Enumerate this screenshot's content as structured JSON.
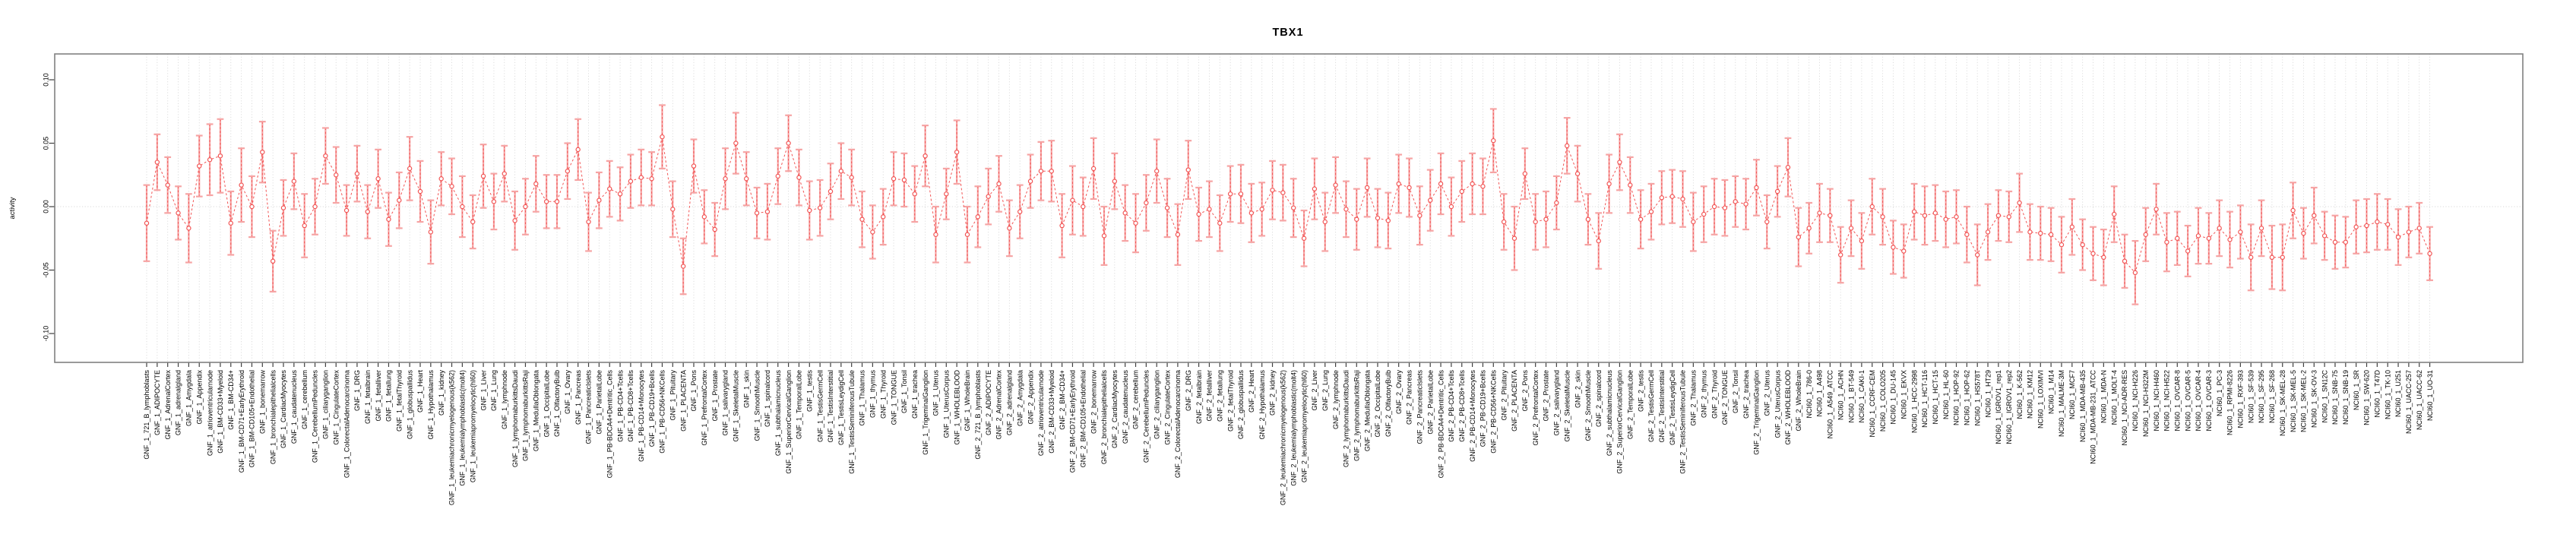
{
  "title": "TBX1",
  "chart_data": {
    "type": "line",
    "subtype": "points-with-error-bars",
    "title": "TBX1",
    "xlabel": "",
    "ylabel": "activity",
    "ylim": [
      -0.123,
      0.122
    ],
    "ytick_values": [
      0.1,
      0.05,
      0.0,
      -0.05,
      -0.1
    ],
    "ytick_labels": [
      "0.10",
      "0.05",
      "0.00",
      "-0.05",
      "-0.10"
    ],
    "grid": "vertical dotted gridline at every category; horizontal dotted line at y=0",
    "legend": "none",
    "colors": {
      "point_and_line": "#f25454",
      "error_bar": "#f6a4a4",
      "grid": "#d9d9d9",
      "box_border": "#808080",
      "tick": "#404040",
      "text": "#000000",
      "background": "#ffffff"
    },
    "categories": [
      "GNF_1_721_B_lymphoblasts",
      "GNF_1_ADIPOCYTE",
      "GNF_1_AdrenalCortex",
      "GNF_1_adrenalgland",
      "GNF_1_Amygdala",
      "GNF_1_Appendix",
      "GNF_1_atrioventricularnode",
      "GNF_1_BM-CD33+Myeloid",
      "GNF_1_BM-CD34+",
      "GNF_1_BM-CD71+EarlyErythroid",
      "GNF_1_BM-CD105+Endothelial",
      "GNF_1_bonemarrow",
      "GNF_1_bronchialepithelialcells",
      "GNF_1_CardiacMyocytes",
      "GNF_1_caudatenucleus",
      "GNF_1_cerebellum",
      "GNF_1_CerebellumPeduncles",
      "GNF_1_ciliaryganglion",
      "GNF_1_CingulateCortex",
      "GNF_1_ColorectalAdenocarcinoma",
      "GNF_1_DRG",
      "GNF_1_fetalbrain",
      "GNF_1_fetalliver",
      "GNF_1_fetallung",
      "GNF_1_fetalThyroid",
      "GNF_1_globuspallidus",
      "GNF_1_Heart",
      "GNF_1_Hypothalamus",
      "GNF_1_kidney",
      "GNF_1_leukemiachronicmyelogenous(k562)",
      "GNF_1_leukemialymphoblastic(molt4)",
      "GNF_1_leukemiapromyelocytic(hl60)",
      "GNF_1_Liver",
      "GNF_1_Lung",
      "GNF_1_lymphnode",
      "GNF_1_lymphomaburkittsDaudi",
      "GNF_1_lymphomaburkittsRaji",
      "GNF_1_MedullaOblongata",
      "GNF_1_OccipitalLobe",
      "GNF_1_OlfactoryBulb",
      "GNF_1_Ovary",
      "GNF_1_Pancreas",
      "GNF_1_PancreaticIslets",
      "GNF_1_ParietalLobe",
      "GNF_1_PB-BDCA4+Dentritic_Cells",
      "GNF_1_PB-CD4+Tcells",
      "GNF_1_PB-CD8+Tcells",
      "GNF_1_PB-CD14+Monocytes",
      "GNF_1_PB-CD19+Bcells",
      "GNF_1_PB-CD56+NKCells",
      "GNF_1_Pituitary",
      "GNF_1_PLACENTA",
      "GNF_1_Pons",
      "GNF_1_PrefrontalCortex",
      "GNF_1_Prostate",
      "GNF_1_salivarygland",
      "GNF_1_SkeletalMuscle",
      "GNF_1_skin",
      "GNF_1_SmoothMuscle",
      "GNF_1_spinalcord",
      "GNF_1_subthalamicnucleus",
      "GNF_1_SuperiorCervicalGanglion",
      "GNF_1_TemporalLobe",
      "GNF_1_testis",
      "GNF_1_TestisGermCell",
      "GNF_1_TestisInterstitial",
      "GNF_1_TestisLeydigCell",
      "GNF_1_TestisSeminiferousTubule",
      "GNF_1_Thalamus",
      "GNF_1_thymus",
      "GNF_1_Thyroid",
      "GNF_1_TONGUE",
      "GNF_1_Tonsil",
      "GNF_1_trachea",
      "GNF_1_TrigeminalGanglion",
      "GNF_1_Uterus",
      "GNF_1_UterusCorpus",
      "GNF_1_WHOLEBLOOD",
      "GNF_1_WholeBrain",
      "GNF_2_721_B_lymphoblasts",
      "GNF_2_ADIPOCYTE",
      "GNF_2_AdrenalCortex",
      "GNF_2_adrenalgland",
      "GNF_2_Amygdala",
      "GNF_2_Appendix",
      "GNF_2_atrioventricularnode",
      "GNF_2_BM-CD33+Myeloid",
      "GNF_2_BM-CD34+",
      "GNF_2_BM-CD71+EarlyErythroid",
      "GNF_2_BM-CD105+Endothelial",
      "GNF_2_bonemarrow",
      "GNF_2_bronchialepithelialcells",
      "GNF_2_CardiacMyocytes",
      "GNF_2_caudatenucleus",
      "GNF_2_cerebellum",
      "GNF_2_CerebellumPeduncles",
      "GNF_2_ciliaryganglion",
      "GNF_2_CingulateCortex",
      "GNF_2_ColorectalAdenocarcinoma",
      "GNF_2_DRG",
      "GNF_2_fetalbrain",
      "GNF_2_fetalliver",
      "GNF_2_fetallung",
      "GNF_2_fetalThyroid",
      "GNF_2_globuspallidus",
      "GNF_2_Heart",
      "GNF_2_Hypothalamus",
      "GNF_2_kidney",
      "GNF_2_leukemiachronicmyelogenous(k562)",
      "GNF_2_leukemialymphoblastic(molt4)",
      "GNF_2_leukemiapromyelocytic(hl60)",
      "GNF_2_Liver",
      "GNF_2_Lung",
      "GNF_2_lymphnode",
      "GNF_2_lymphomaburkittsDaudi",
      "GNF_2_lymphomaburkittsRaji",
      "GNF_2_MedullaOblongata",
      "GNF_2_OccipitalLobe",
      "GNF_2_OlfactoryBulb",
      "GNF_2_Ovary",
      "GNF_2_Pancreas",
      "GNF_2_PancreaticIslets",
      "GNF_2_ParietalLobe",
      "GNF_2_PB-BDCA4+Dentritic_Cells",
      "GNF_2_PB-CD4+Tcells",
      "GNF_2_PB-CD8+Tcells",
      "GNF_2_PB-CD14+Monocytes",
      "GNF_2_PB-CD19+Bcells",
      "GNF_2_PB-CD56+NKCells",
      "GNF_2_Pituitary",
      "GNF_2_PLACENTA",
      "GNF_2_Pons",
      "GNF_2_PrefrontalCortex",
      "GNF_2_Prostate",
      "GNF_2_salivarygland",
      "GNF_2_SkeletalMuscle",
      "GNF_2_skin",
      "GNF_2_SmoothMuscle",
      "GNF_2_spinalcord",
      "GNF_2_subthalamicnucleus",
      "GNF_2_SuperiorCervicalGanglion",
      "GNF_2_TemporalLobe",
      "GNF_2_testis",
      "GNF_2_TestisGermCell",
      "GNF_2_TestisInterstitial",
      "GNF_2_TestisLeydigCell",
      "GNF_2_TestisSeminiferousTubule",
      "GNF_2_Thalamus",
      "GNF_2_thymus",
      "GNF_2_Thyroid",
      "GNF_2_TONGUE",
      "GNF_2_Tonsil",
      "GNF_2_trachea",
      "GNF_2_TrigeminalGanglion",
      "GNF_2_Uterus",
      "GNF_2_UterusCorpus",
      "GNF_2_WHOLEBLOOD",
      "GNF_2_WholeBrain",
      "NCI60_1_786-0",
      "NCI60_1_A498",
      "NCI60_1_A549_ATCC",
      "NCI60_1_ACHN",
      "NCI60_1_BT-549",
      "NCI60_1_CAKI-1",
      "NCI60_1_CCRF-CEM",
      "NCI60_1_COLO205",
      "NCI60_1_DU-145",
      "NCI60_1_EKVX",
      "NCI60_1_HCC-2998",
      "NCI60_1_HCT-116",
      "NCI60_1_HCT-15",
      "NCI60_1_HL-60",
      "NCI60_1_HOP-92",
      "NCI60_1_HOP-62",
      "NCI60_1_HS578T",
      "NCI60_1_HT29",
      "NCI60_1_IGROV1_rep1",
      "NCI60_1_IGROV1_rep2",
      "NCI60_1_K-562",
      "NCI60_1_KM12",
      "NCI60_1_LOXIMVI",
      "NCI60_1_M14",
      "NCI60_1_MALME-3M",
      "NCI60_1_MCF7",
      "NCI60_1_MDA-MB-435",
      "NCI60_1_MDA-MB-231_ATCC",
      "NCI60_1_MDA-N",
      "NCI60_1_MOLT-4",
      "NCI60_1_NCI-ADR-RES",
      "NCI60_1_NCI-H226",
      "NCI60_1_NCI-H322M",
      "NCI60_1_NCI-H460",
      "NCI60_1_NCI-H522",
      "NCI60_1_OVCAR-8",
      "NCI60_1_OVCAR-5",
      "NCI60_1_OVCAR-4",
      "NCI60_1_OVCAR-3",
      "NCI60_1_PC-3",
      "NCI60_1_RPMI-8226",
      "NCI60_1_RXF-393",
      "NCI60_1_SF-539",
      "NCI60_1_SF-295",
      "NCI60_1_SF-268",
      "NCI60_1_SK-MEL-28",
      "NCI60_1_SK-MEL-5",
      "NCI60_1_SK-MEL-2",
      "NCI60_1_SK-OV-3",
      "NCI60_1_SN12C",
      "NCI60_1_SNB-75",
      "NCI60_1_SNB-19",
      "NCI60_1_SR",
      "NCI60_1_SW-620",
      "NCI60_1_T47D",
      "NCI60_1_TK-10",
      "NCI60_1_U251",
      "NCI60_1_UACC-257",
      "NCI60_1_UACC-62",
      "NCI60_1_UO-31"
    ],
    "series": [
      {
        "name": "activity",
        "values": [
          -0.013,
          0.035,
          0.017,
          -0.005,
          -0.017,
          0.032,
          0.037,
          0.04,
          -0.013,
          0.017,
          0.0,
          0.043,
          -0.043,
          -0.001,
          0.02,
          -0.015,
          0.0,
          0.04,
          0.025,
          -0.003,
          0.026,
          -0.004,
          0.022,
          -0.01,
          0.005,
          0.03,
          0.012,
          -0.02,
          0.022,
          0.016,
          0.0,
          -0.012,
          0.024,
          0.004,
          0.026,
          -0.011,
          0.0,
          0.018,
          0.004,
          0.004,
          0.028,
          0.045,
          -0.012,
          0.005,
          0.014,
          0.01,
          0.02,
          0.023,
          0.022,
          0.055,
          -0.002,
          -0.047,
          0.032,
          -0.008,
          -0.018,
          0.022,
          0.05,
          0.022,
          -0.005,
          -0.004,
          0.024,
          0.05,
          0.023,
          -0.003,
          -0.001,
          0.012,
          0.028,
          0.023,
          -0.01,
          -0.02,
          -0.008,
          0.022,
          0.021,
          0.01,
          0.04,
          -0.022,
          0.01,
          0.043,
          -0.022,
          -0.008,
          0.008,
          0.018,
          -0.017,
          -0.004,
          0.02,
          0.028,
          0.028,
          -0.015,
          0.005,
          0.0,
          0.03,
          -0.023,
          0.02,
          -0.005,
          -0.013,
          0.003,
          0.028,
          -0.001,
          -0.022,
          0.029,
          -0.006,
          -0.002,
          -0.013,
          0.01,
          0.01,
          -0.005,
          -0.002,
          0.013,
          0.011,
          -0.001,
          -0.025,
          0.014,
          -0.012,
          0.017,
          -0.002,
          -0.01,
          0.015,
          -0.009,
          -0.011,
          0.018,
          0.015,
          -0.007,
          0.005,
          0.018,
          0.0,
          0.012,
          0.018,
          0.016,
          0.052,
          -0.012,
          -0.025,
          0.026,
          -0.012,
          -0.01,
          0.003,
          0.048,
          0.026,
          -0.01,
          -0.027,
          0.018,
          0.035,
          0.017,
          -0.01,
          -0.004,
          0.007,
          0.008,
          0.006,
          -0.012,
          -0.006,
          0.0,
          -0.001,
          0.004,
          0.002,
          0.015,
          -0.012,
          0.012,
          0.031,
          -0.024,
          -0.017,
          -0.005,
          -0.007,
          -0.038,
          -0.017,
          -0.027,
          0.0,
          -0.008,
          -0.032,
          -0.035,
          -0.004,
          -0.007,
          -0.005,
          -0.01,
          -0.008,
          -0.022,
          -0.038,
          -0.02,
          -0.007,
          -0.008,
          0.003,
          -0.02,
          -0.021,
          -0.022,
          -0.03,
          -0.016,
          -0.03,
          -0.037,
          -0.04,
          -0.006,
          -0.043,
          -0.052,
          -0.022,
          -0.002,
          -0.028,
          -0.025,
          -0.035,
          -0.023,
          -0.025,
          -0.017,
          -0.026,
          -0.02,
          -0.04,
          -0.017,
          -0.04,
          -0.04,
          -0.003,
          -0.021,
          -0.007,
          -0.023,
          -0.028,
          -0.028,
          -0.016,
          -0.015,
          -0.012,
          -0.014,
          -0.024,
          -0.02,
          -0.017,
          -0.037
        ],
        "ci_half": [
          0.03,
          0.022,
          0.022,
          0.021,
          0.027,
          0.024,
          0.028,
          0.029,
          0.025,
          0.029,
          0.024,
          0.024,
          0.024,
          0.022,
          0.022,
          0.025,
          0.022,
          0.022,
          0.022,
          0.02,
          0.022,
          0.021,
          0.023,
          0.021,
          0.022,
          0.025,
          0.024,
          0.025,
          0.021,
          0.022,
          0.024,
          0.021,
          0.025,
          0.022,
          0.022,
          0.023,
          0.022,
          0.022,
          0.021,
          0.021,
          0.022,
          0.024,
          0.023,
          0.022,
          0.022,
          0.021,
          0.021,
          0.022,
          0.021,
          0.025,
          0.022,
          0.022,
          0.021,
          0.021,
          0.021,
          0.024,
          0.024,
          0.021,
          0.02,
          0.022,
          0.022,
          0.022,
          0.022,
          0.023,
          0.022,
          0.022,
          0.022,
          0.022,
          0.022,
          0.021,
          0.022,
          0.021,
          0.021,
          0.022,
          0.024,
          0.022,
          0.02,
          0.025,
          0.022,
          0.024,
          0.022,
          0.022,
          0.022,
          0.021,
          0.021,
          0.023,
          0.024,
          0.025,
          0.027,
          0.023,
          0.024,
          0.023,
          0.022,
          0.022,
          0.023,
          0.022,
          0.025,
          0.023,
          0.024,
          0.023,
          0.021,
          0.022,
          0.022,
          0.022,
          0.023,
          0.023,
          0.021,
          0.023,
          0.022,
          0.023,
          0.022,
          0.024,
          0.023,
          0.022,
          0.022,
          0.024,
          0.023,
          0.023,
          0.022,
          0.023,
          0.023,
          0.023,
          0.024,
          0.024,
          0.023,
          0.024,
          0.024,
          0.022,
          0.025,
          0.022,
          0.025,
          0.02,
          0.022,
          0.022,
          0.021,
          0.022,
          0.022,
          0.02,
          0.022,
          0.023,
          0.022,
          0.022,
          0.023,
          0.022,
          0.021,
          0.021,
          0.022,
          0.023,
          0.022,
          0.022,
          0.022,
          0.02,
          0.02,
          0.022,
          0.021,
          0.02,
          0.023,
          0.023,
          0.02,
          0.023,
          0.021,
          0.022,
          0.022,
          0.022,
          0.022,
          0.022,
          0.021,
          0.021,
          0.022,
          0.023,
          0.022,
          0.022,
          0.021,
          0.022,
          0.024,
          0.022,
          0.02,
          0.02,
          0.023,
          0.022,
          0.021,
          0.021,
          0.022,
          0.022,
          0.02,
          0.021,
          0.022,
          0.022,
          0.021,
          0.025,
          0.021,
          0.02,
          0.023,
          0.021,
          0.02,
          0.022,
          0.02,
          0.022,
          0.022,
          0.021,
          0.026,
          0.022,
          0.025,
          0.026,
          0.022,
          0.02,
          0.022,
          0.019,
          0.021,
          0.02,
          0.021,
          0.021,
          0.022,
          0.02,
          0.022,
          0.02,
          0.02,
          0.021
        ]
      }
    ]
  }
}
